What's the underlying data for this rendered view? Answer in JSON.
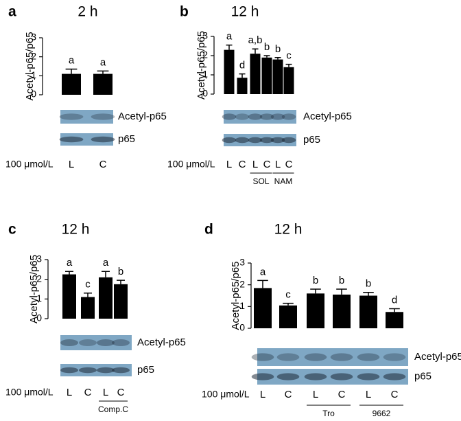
{
  "chart_data": [
    {
      "type": "bar",
      "panel": "a",
      "title": "2 h",
      "y_label": "Acetyl-p65/p65",
      "color": "#000000",
      "categories": [
        "L",
        "C"
      ],
      "values": [
        1.1,
        1.1
      ],
      "errors": [
        0.25,
        0.15
      ],
      "annotations": [
        "a",
        "a"
      ],
      "ylim": [
        0,
        3
      ],
      "yticks": [
        0,
        1,
        2,
        3
      ],
      "blot_labels": [
        "Acetyl-p65",
        "p65"
      ],
      "dose_label": "100 μmol/L",
      "groups": []
    },
    {
      "type": "bar",
      "panel": "b",
      "title": "12 h",
      "y_label": "Acetyl-p65/p65",
      "color": "#000000",
      "categories": [
        "L",
        "C",
        "L",
        "C",
        "L",
        "C"
      ],
      "values": [
        2.3,
        0.85,
        2.1,
        1.9,
        1.8,
        1.4
      ],
      "errors": [
        0.25,
        0.2,
        0.25,
        0.1,
        0.1,
        0.15
      ],
      "annotations": [
        "a",
        "d",
        "a,b",
        "b",
        "b",
        "c"
      ],
      "ylim": [
        0,
        3
      ],
      "yticks": [
        0,
        1,
        2,
        3
      ],
      "blot_labels": [
        "Acetyl-p65",
        "p65"
      ],
      "dose_label": "100 μmol/L",
      "groups": [
        {
          "label": "SOL"
        },
        {
          "label": "NAM"
        }
      ]
    },
    {
      "type": "bar",
      "panel": "c",
      "title": "12 h",
      "y_label": "Acetyl-p65/p65",
      "color": "#000000",
      "categories": [
        "L",
        "C",
        "L",
        "C"
      ],
      "values": [
        2.25,
        1.1,
        2.1,
        1.75
      ],
      "errors": [
        0.15,
        0.2,
        0.3,
        0.2
      ],
      "annotations": [
        "a",
        "c",
        "a",
        "b"
      ],
      "ylim": [
        0,
        3
      ],
      "yticks": [
        0,
        1,
        2,
        3
      ],
      "blot_labels": [
        "Acetyl-p65",
        "p65"
      ],
      "dose_label": "100 μmol/L",
      "groups": [
        {
          "label": "Comp.C"
        }
      ]
    },
    {
      "type": "bar",
      "panel": "d",
      "title": "12 h",
      "y_label": "Acetyl-p65/p65",
      "color": "#000000",
      "categories": [
        "L",
        "C",
        "L",
        "C",
        "L",
        "C"
      ],
      "values": [
        1.85,
        1.05,
        1.6,
        1.55,
        1.5,
        0.75
      ],
      "errors": [
        0.35,
        0.1,
        0.2,
        0.25,
        0.15,
        0.15
      ],
      "annotations": [
        "a",
        "c",
        "b",
        "b",
        "b",
        "d"
      ],
      "ylim": [
        0,
        3
      ],
      "yticks": [
        0,
        1,
        2,
        3
      ],
      "blot_labels": [
        "Acetyl-p65",
        "p65"
      ],
      "dose_label": "100 μmol/L",
      "groups": [
        {
          "label": "Tro"
        },
        {
          "label": "9662"
        }
      ]
    }
  ]
}
